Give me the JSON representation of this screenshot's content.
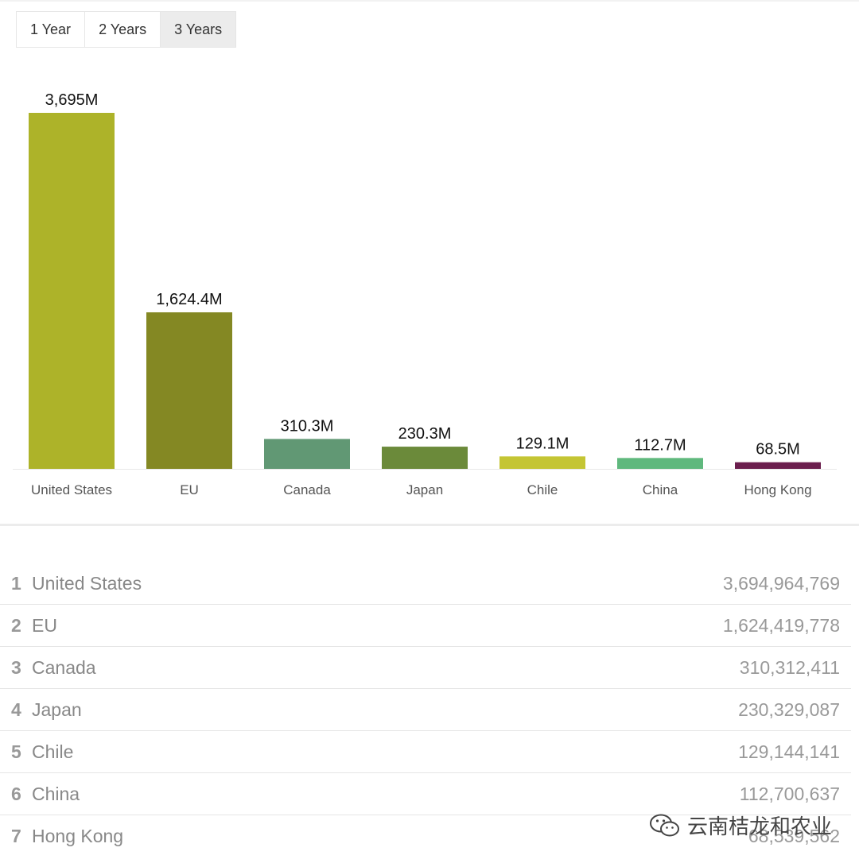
{
  "tabs": [
    {
      "label": "1 Year",
      "active": false
    },
    {
      "label": "2 Years",
      "active": false
    },
    {
      "label": "3 Years",
      "active": true
    }
  ],
  "chart_data": {
    "type": "bar",
    "categories": [
      "United States",
      "EU",
      "Canada",
      "Japan",
      "Chile",
      "China",
      "Hong Kong"
    ],
    "values": [
      3695,
      1624.4,
      310.3,
      230.3,
      129.1,
      112.7,
      68.5
    ],
    "value_labels": [
      "3,695M",
      "1,624.4M",
      "310.3M",
      "230.3M",
      "129.1M",
      "112.7M",
      "68.5M"
    ],
    "colors": [
      "#adb329",
      "#848823",
      "#619874",
      "#6b8a3a",
      "#c4c534",
      "#5fb87d",
      "#6b1e4d"
    ],
    "ylim": [
      0,
      3695
    ],
    "grid": false,
    "legend": "none"
  },
  "table": {
    "rows": [
      {
        "rank": "1",
        "name": "United States",
        "value": "3,694,964,769"
      },
      {
        "rank": "2",
        "name": "EU",
        "value": "1,624,419,778"
      },
      {
        "rank": "3",
        "name": "Canada",
        "value": "310,312,411"
      },
      {
        "rank": "4",
        "name": "Japan",
        "value": "230,329,087"
      },
      {
        "rank": "5",
        "name": "Chile",
        "value": "129,144,141"
      },
      {
        "rank": "6",
        "name": "China",
        "value": "112,700,637"
      },
      {
        "rank": "7",
        "name": "Hong Kong",
        "value": "68,539,562"
      }
    ]
  },
  "watermark": {
    "text": "云南桔龙和农业",
    "icon": "wechat-icon"
  }
}
